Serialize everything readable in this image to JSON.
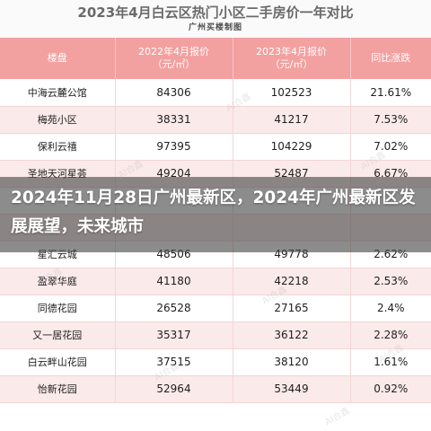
{
  "table_title": "2023年4月白云区热门小区二手房价一年对比",
  "source": "广州买楼制图",
  "watermark": "AI合鑫",
  "columns": [
    "楼盘",
    "2022年4月报价\n（元/㎡）",
    "2023年4月报价\n（元/㎡）",
    "同比涨跌"
  ],
  "rows": [
    {
      "name": "中海云麓公馆",
      "p2022": "84306",
      "p2023": "102523",
      "change": "21.61%"
    },
    {
      "name": "梅苑小区",
      "p2022": "38331",
      "p2023": "41217",
      "change": "7.53%"
    },
    {
      "name": "保利云禧",
      "p2022": "97395",
      "p2023": "104229",
      "change": "7.02%"
    },
    {
      "name": "圣地天河星荟",
      "p2022": "49204",
      "p2023": "52487",
      "change": "6.67%"
    },
    {
      "name": "",
      "p2022": "",
      "p2023": "",
      "change": ""
    },
    {
      "name": "",
      "p2022": "",
      "p2023": "",
      "change": ""
    },
    {
      "name": "星汇云城",
      "p2022": "48506",
      "p2023": "49778",
      "change": "2.62%"
    },
    {
      "name": "盈翠华庭",
      "p2022": "41180",
      "p2023": "42218",
      "change": "2.53%"
    },
    {
      "name": "同德花园",
      "p2022": "26528",
      "p2023": "27165",
      "change": "2.4%"
    },
    {
      "name": "又一居花园",
      "p2022": "35317",
      "p2023": "36122",
      "change": "2.28%"
    },
    {
      "name": "白云畔山花园",
      "p2022": "37515",
      "p2023": "38120",
      "change": "1.61%"
    },
    {
      "name": "怡新花园",
      "p2022": "52964",
      "p2023": "53449",
      "change": "0.92%"
    }
  ],
  "overlay_title": "2024年11月28日广州最新区，2024年广州最新区发展展望，未来城市"
}
